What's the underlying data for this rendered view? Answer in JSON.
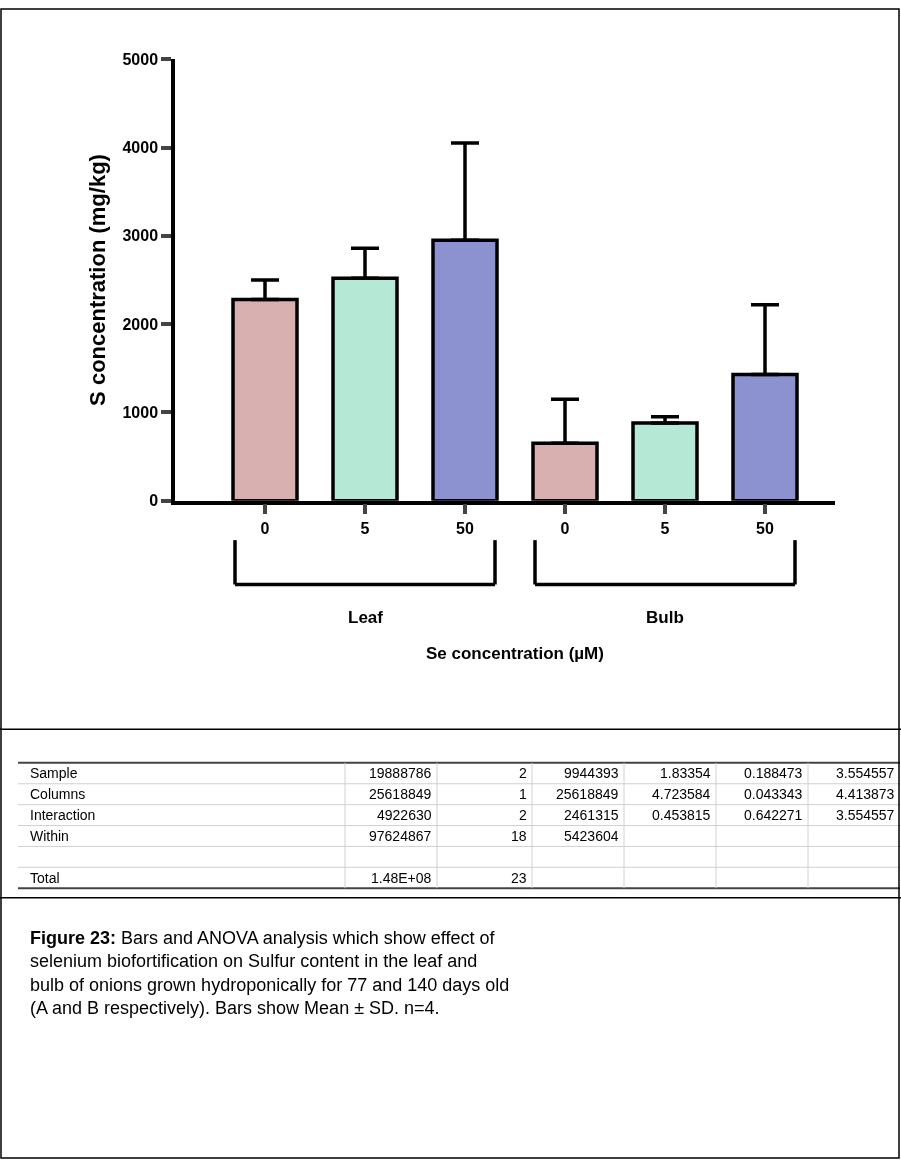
{
  "chart_data": {
    "type": "bar",
    "ylabel": "S concentration (mg/kg)",
    "categories": [
      "0",
      "5",
      "50",
      "0",
      "5",
      "50"
    ],
    "values": [
      2280,
      2520,
      2950,
      650,
      880,
      1430
    ],
    "errors": [
      [
        2280,
        2500
      ],
      [
        2520,
        2860
      ],
      [
        2950,
        4050
      ],
      [
        650,
        1150
      ],
      [
        880,
        950
      ],
      [
        1430,
        2220
      ]
    ],
    "colors": [
      "#d8b0b0",
      "#b5e8d5",
      "#8c92cf",
      "#d8b0b0",
      "#b5e8d5",
      "#8c92cf"
    ],
    "ylim": [
      0,
      5000
    ],
    "yticks": [
      0,
      1000,
      2000,
      3000,
      4000,
      5000
    ],
    "legend": false,
    "annotations": [
      "Leaf",
      "Bulb",
      "Sample",
      "19888786",
      "2",
      "9944393",
      "1.83354",
      "0.188473",
      "3.554557",
      "Columns",
      "25618849",
      "1",
      "25618849",
      "4.723584",
      "0.043343",
      "4.413873",
      "Interaction",
      "4922630",
      "2",
      "2461315",
      "0.453815",
      "0.642271",
      "3.554557",
      "Within",
      "97624867",
      "18",
      "5423604",
      "Total",
      "1.48E+08",
      "23",
      "Figure 23:",
      "Bars and ANOVA analysis which show effect of selenium biofortification on Sulfur content in the leaf and bulb of onions grown hydroponically for 77 and 140 days old (A and B respectively). Bars show Mean ± SD. n=4.",
      "Se concentration (µM)"
    ]
  }
}
